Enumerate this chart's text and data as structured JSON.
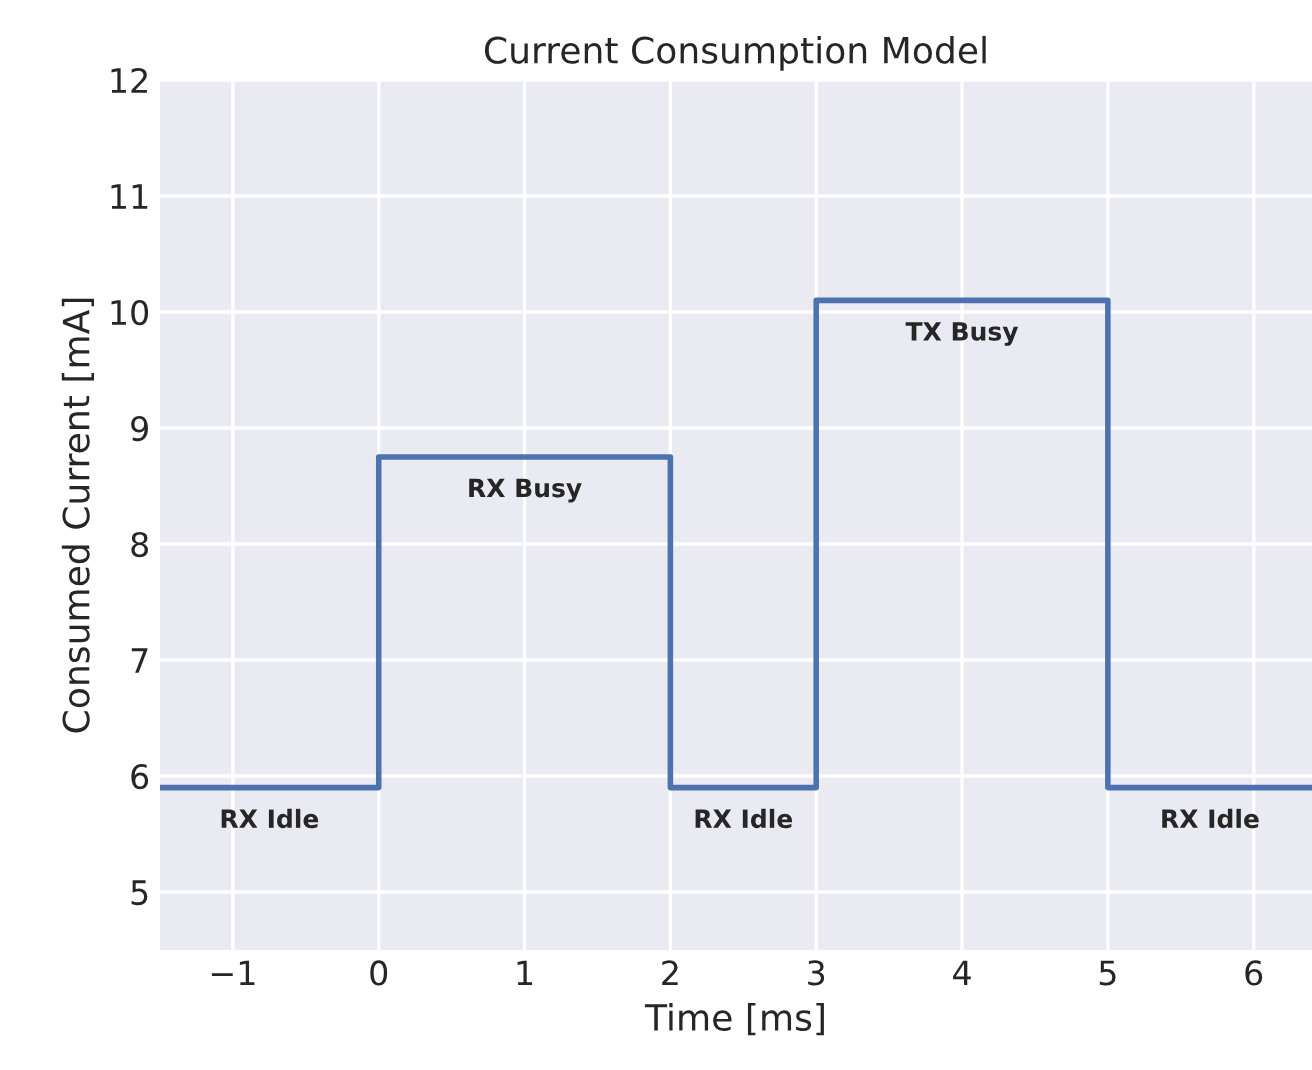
{
  "chart_data": {
    "type": "step",
    "title": "Current Consumption Model",
    "xlabel": "Time [ms]",
    "ylabel": "Consumed Current [mA]",
    "x": [
      -1.5,
      0,
      2,
      3,
      5,
      6.4
    ],
    "series": [
      {
        "color": "#4c72b0",
        "values": [
          5.9,
          8.75,
          5.9,
          10.1,
          5.9,
          5.9
        ]
      }
    ],
    "xlim": [
      -1.5,
      6.4
    ],
    "xticks": [
      {
        "value": -1,
        "label": "−1"
      },
      0,
      1,
      2,
      3,
      4,
      5,
      6
    ],
    "ylim": [
      4.5,
      12
    ],
    "yticks": [
      5,
      6,
      7,
      8,
      9,
      10,
      11,
      12
    ],
    "grid": true,
    "marker": "none",
    "line_style": "solid",
    "annotations": [
      "RX Idle",
      "RX Busy",
      "RX Idle",
      "TX Busy",
      "RX Idle"
    ]
  }
}
